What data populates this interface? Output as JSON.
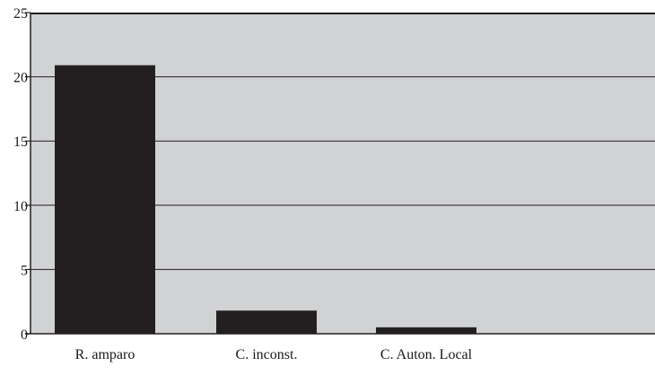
{
  "chart_data": {
    "type": "bar",
    "title": "",
    "xlabel": "",
    "ylabel": "",
    "categories": [
      "R. amparo",
      "C. inconst.",
      "C. Auton. Local"
    ],
    "values": [
      20.9,
      1.8,
      0.5
    ],
    "ylim": [
      0,
      25
    ],
    "yticks": [
      0,
      5,
      10,
      15,
      20,
      25
    ],
    "ytick_labels": [
      "0",
      "5",
      "10",
      "15",
      "20",
      "25"
    ],
    "grid": true,
    "legend": "none",
    "colors": {
      "bar": "#231f20",
      "plot_background": "#d1d2d4",
      "gridline": "#231f20",
      "axis": "#231f20"
    }
  }
}
